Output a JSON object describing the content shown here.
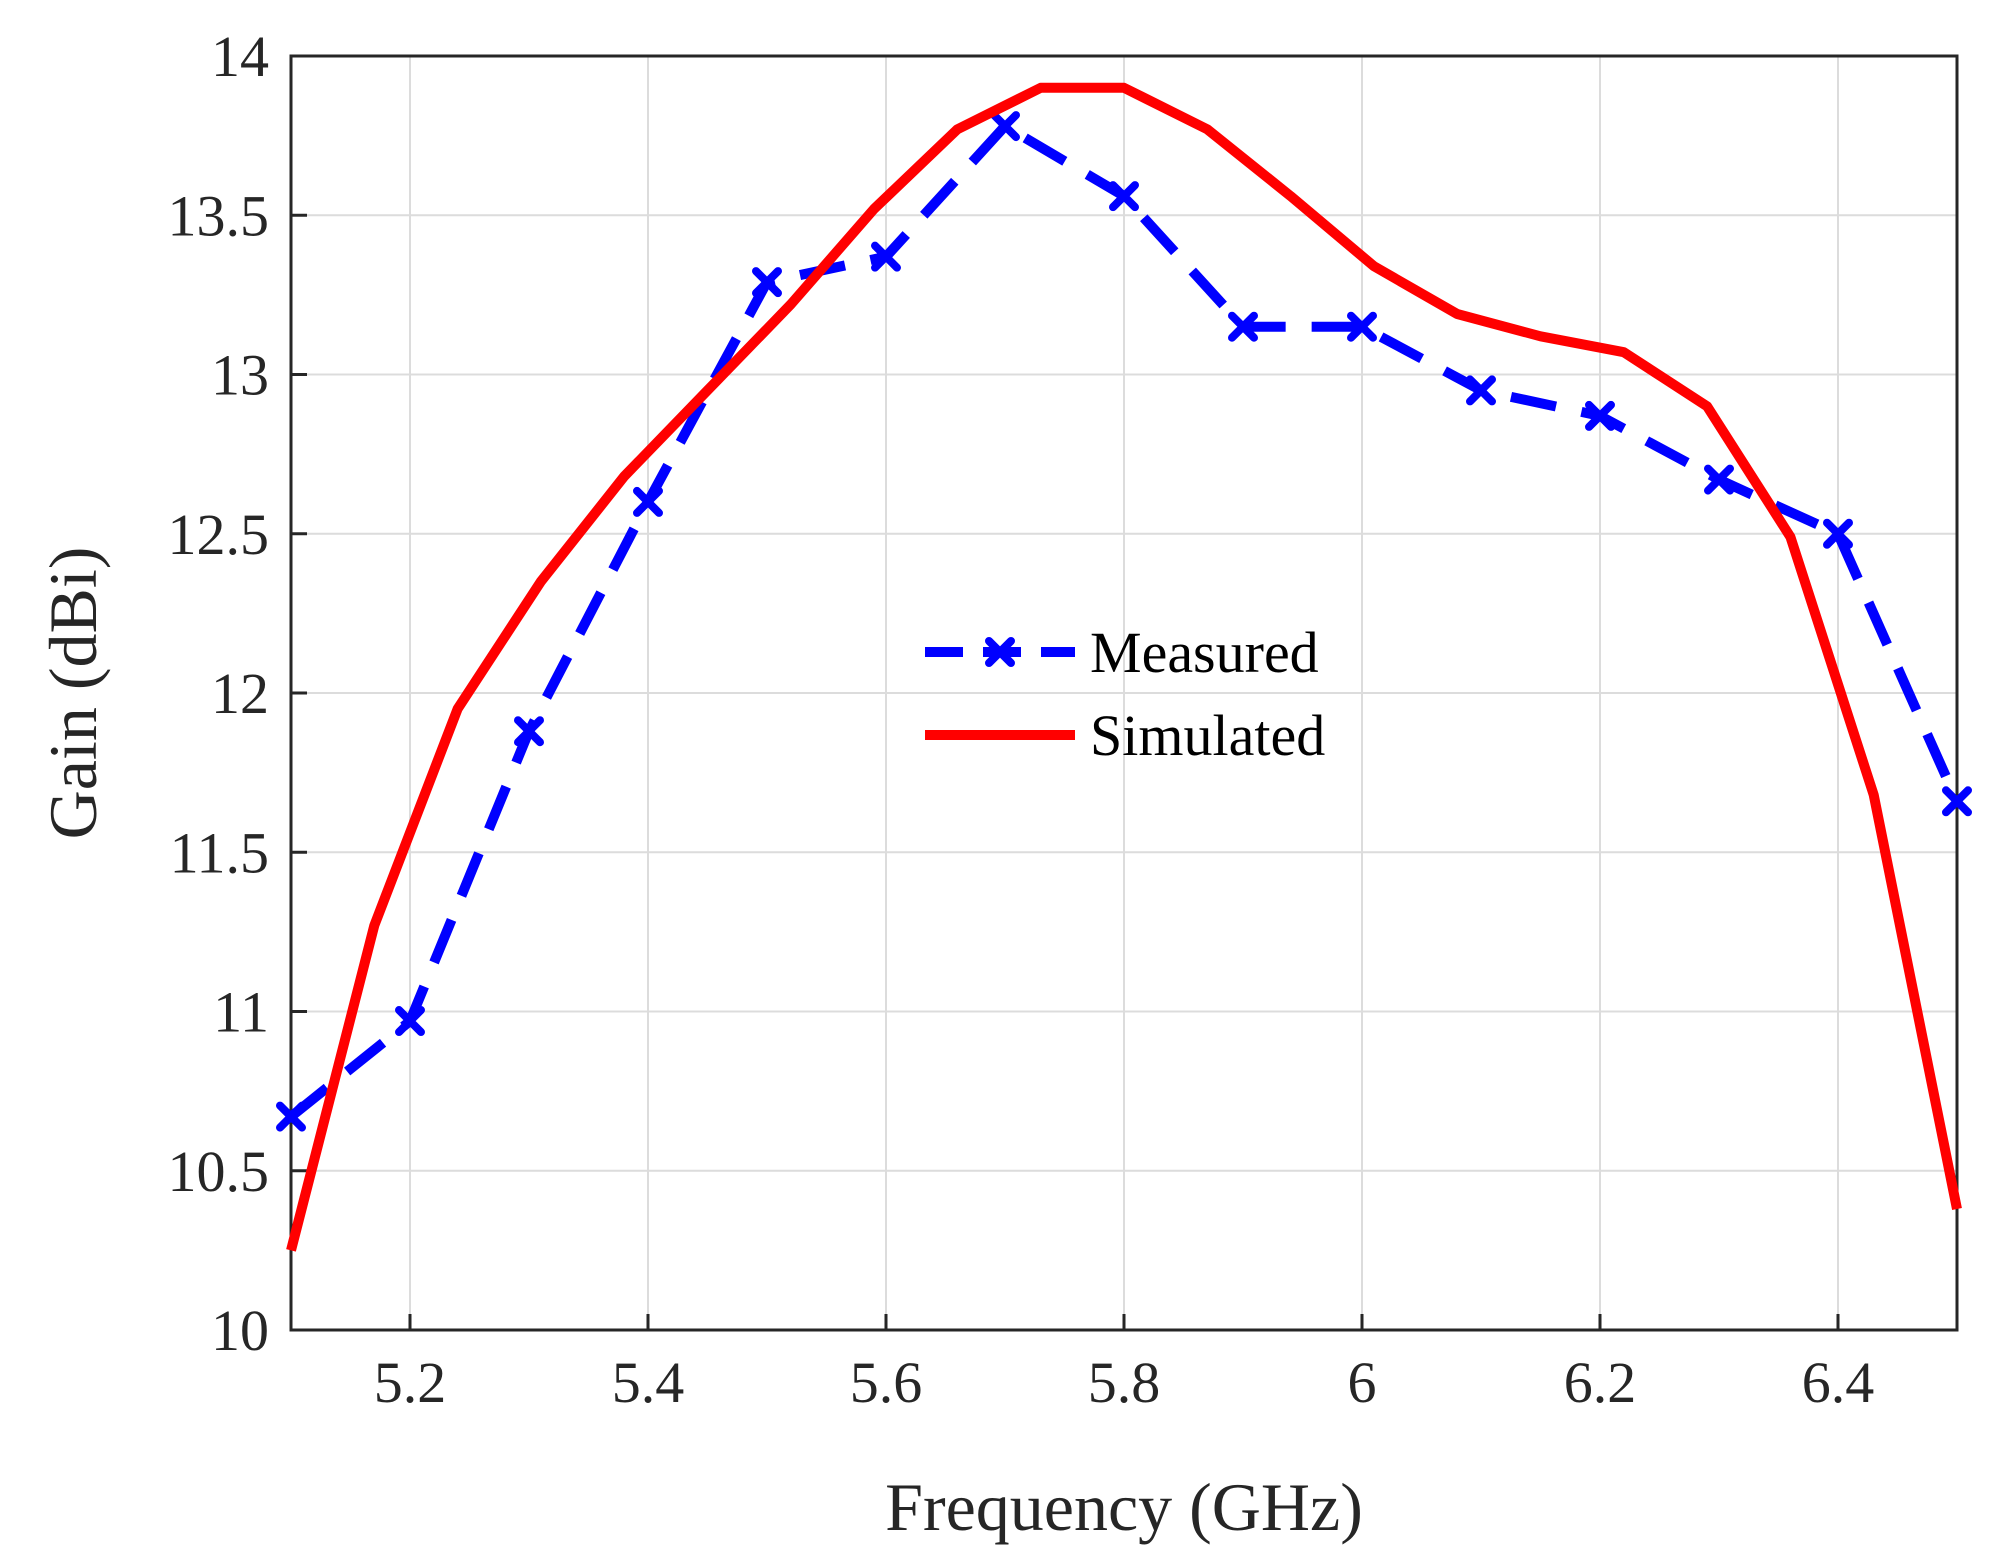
{
  "chart_data": {
    "type": "line",
    "title": "",
    "xlabel": "Frequency (GHz)",
    "ylabel": "Gain (dBi)",
    "xlim": [
      5.1,
      6.5
    ],
    "ylim": [
      10,
      14
    ],
    "xticks": [
      5.2,
      5.4,
      5.6,
      5.8,
      6.0,
      6.2,
      6.4
    ],
    "xtick_labels": [
      "5.2",
      "5.4",
      "5.6",
      "5.8",
      "6",
      "6.2",
      "6.4"
    ],
    "yticks": [
      10,
      10.5,
      11,
      11.5,
      12,
      12.5,
      13,
      13.5,
      14
    ],
    "ytick_labels": [
      "10",
      "10.5",
      "11",
      "11.5",
      "12",
      "12.5",
      "13",
      "13.5",
      "14"
    ],
    "grid": true,
    "legend_position": "center",
    "series": [
      {
        "name": "Measured",
        "color": "#0000ff",
        "style": "dashed",
        "marker": "x",
        "x": [
          5.1,
          5.2,
          5.3,
          5.4,
          5.5,
          5.6,
          5.7,
          5.8,
          5.9,
          6.0,
          6.1,
          6.2,
          6.3,
          6.4,
          6.5
        ],
        "y": [
          10.67,
          10.97,
          11.88,
          12.6,
          13.29,
          13.37,
          13.78,
          13.56,
          13.15,
          13.15,
          12.95,
          12.87,
          12.67,
          12.5,
          11.66
        ]
      },
      {
        "name": "Simulated",
        "color": "#ff0000",
        "style": "solid",
        "marker": "none",
        "x": [
          5.1,
          5.17,
          5.24,
          5.31,
          5.38,
          5.45,
          5.52,
          5.59,
          5.66,
          5.73,
          5.8,
          5.87,
          5.94,
          6.01,
          6.08,
          6.15,
          6.22,
          6.29,
          6.36,
          6.43,
          6.5
        ],
        "y": [
          10.25,
          11.27,
          11.95,
          12.35,
          12.68,
          12.95,
          13.22,
          13.52,
          13.77,
          13.9,
          13.9,
          13.77,
          13.56,
          13.34,
          13.19,
          13.12,
          13.07,
          12.9,
          12.49,
          11.68,
          10.38
        ]
      }
    ]
  }
}
